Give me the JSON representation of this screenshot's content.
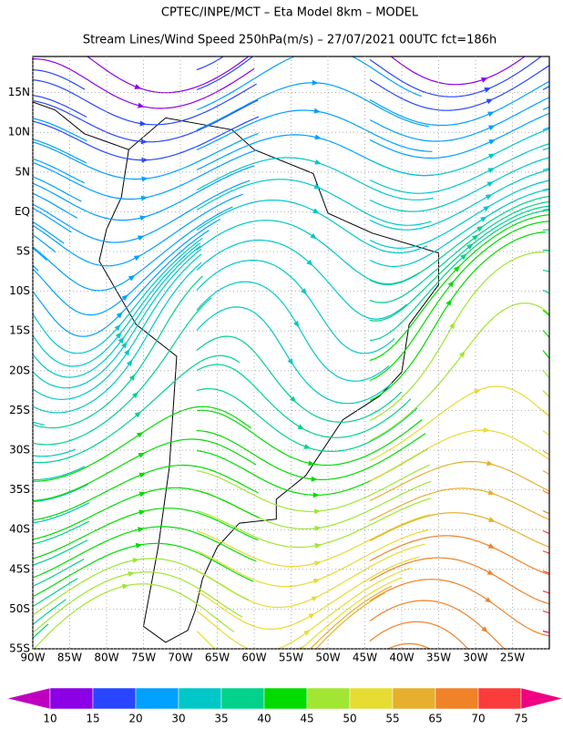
{
  "header": {
    "title": "CPTEC/INPE/MCT –  Eta Model 8km – MODEL",
    "subtitle": "Stream Lines/Wind Speed 250hPa(m/s) – 27/07/2021 00UTC fct=186h"
  },
  "map": {
    "lat_labels": [
      "15N",
      "10N",
      "5N",
      "EQ",
      "5S",
      "10S",
      "15S",
      "20S",
      "25S",
      "30S",
      "35S",
      "40S",
      "45S",
      "50S",
      "55S"
    ],
    "lon_labels": [
      "90W",
      "85W",
      "80W",
      "75W",
      "70W",
      "65W",
      "60W",
      "55W",
      "50W",
      "45W",
      "40W",
      "35W",
      "30W",
      "25W"
    ]
  },
  "colorbar": {
    "labels": [
      10,
      15,
      20,
      30,
      35,
      40,
      45,
      50,
      55,
      65,
      70,
      75
    ],
    "colors": [
      "#c000c0",
      "#8c00e6",
      "#2846ff",
      "#00a0ff",
      "#00c8c8",
      "#00d28c",
      "#00dc00",
      "#a0e632",
      "#e6dc32",
      "#e6af2d",
      "#f08228",
      "#fa3c3c",
      "#f00082"
    ]
  }
}
